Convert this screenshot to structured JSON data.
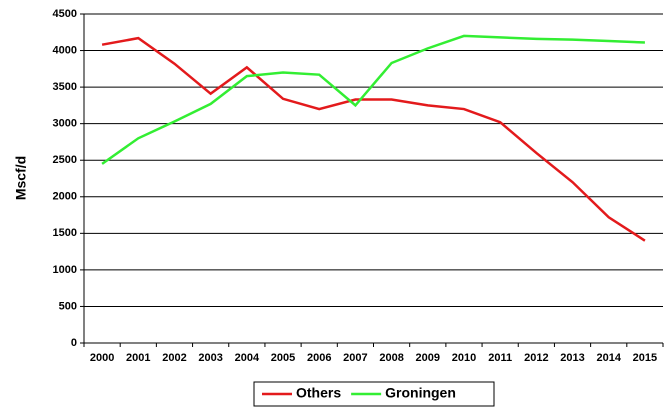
{
  "chart_data": {
    "type": "line",
    "y_label": "Mscf/d",
    "categories": [
      "2000",
      "2001",
      "2002",
      "2003",
      "2004",
      "2005",
      "2006",
      "2007",
      "2008",
      "2009",
      "2010",
      "2011",
      "2012",
      "2013",
      "2014",
      "2015"
    ],
    "series": [
      {
        "name": "Others",
        "color": "#e31a1c",
        "values": [
          4080,
          4170,
          3820,
          3410,
          3770,
          3340,
          3200,
          3330,
          3330,
          3250,
          3200,
          3020,
          2600,
          2200,
          1720,
          1400
        ]
      },
      {
        "name": "Groningen",
        "color": "#33ee33",
        "values": [
          2450,
          2800,
          3030,
          3270,
          3650,
          3700,
          3670,
          3250,
          3830,
          4030,
          4200,
          4180,
          4160,
          4150,
          4130,
          4110
        ]
      }
    ],
    "ylim": [
      0,
      4500
    ],
    "yticks": [
      0,
      500,
      1000,
      1500,
      2000,
      2500,
      3000,
      3500,
      4000,
      4500
    ],
    "grid": true,
    "legend": "bottom"
  }
}
